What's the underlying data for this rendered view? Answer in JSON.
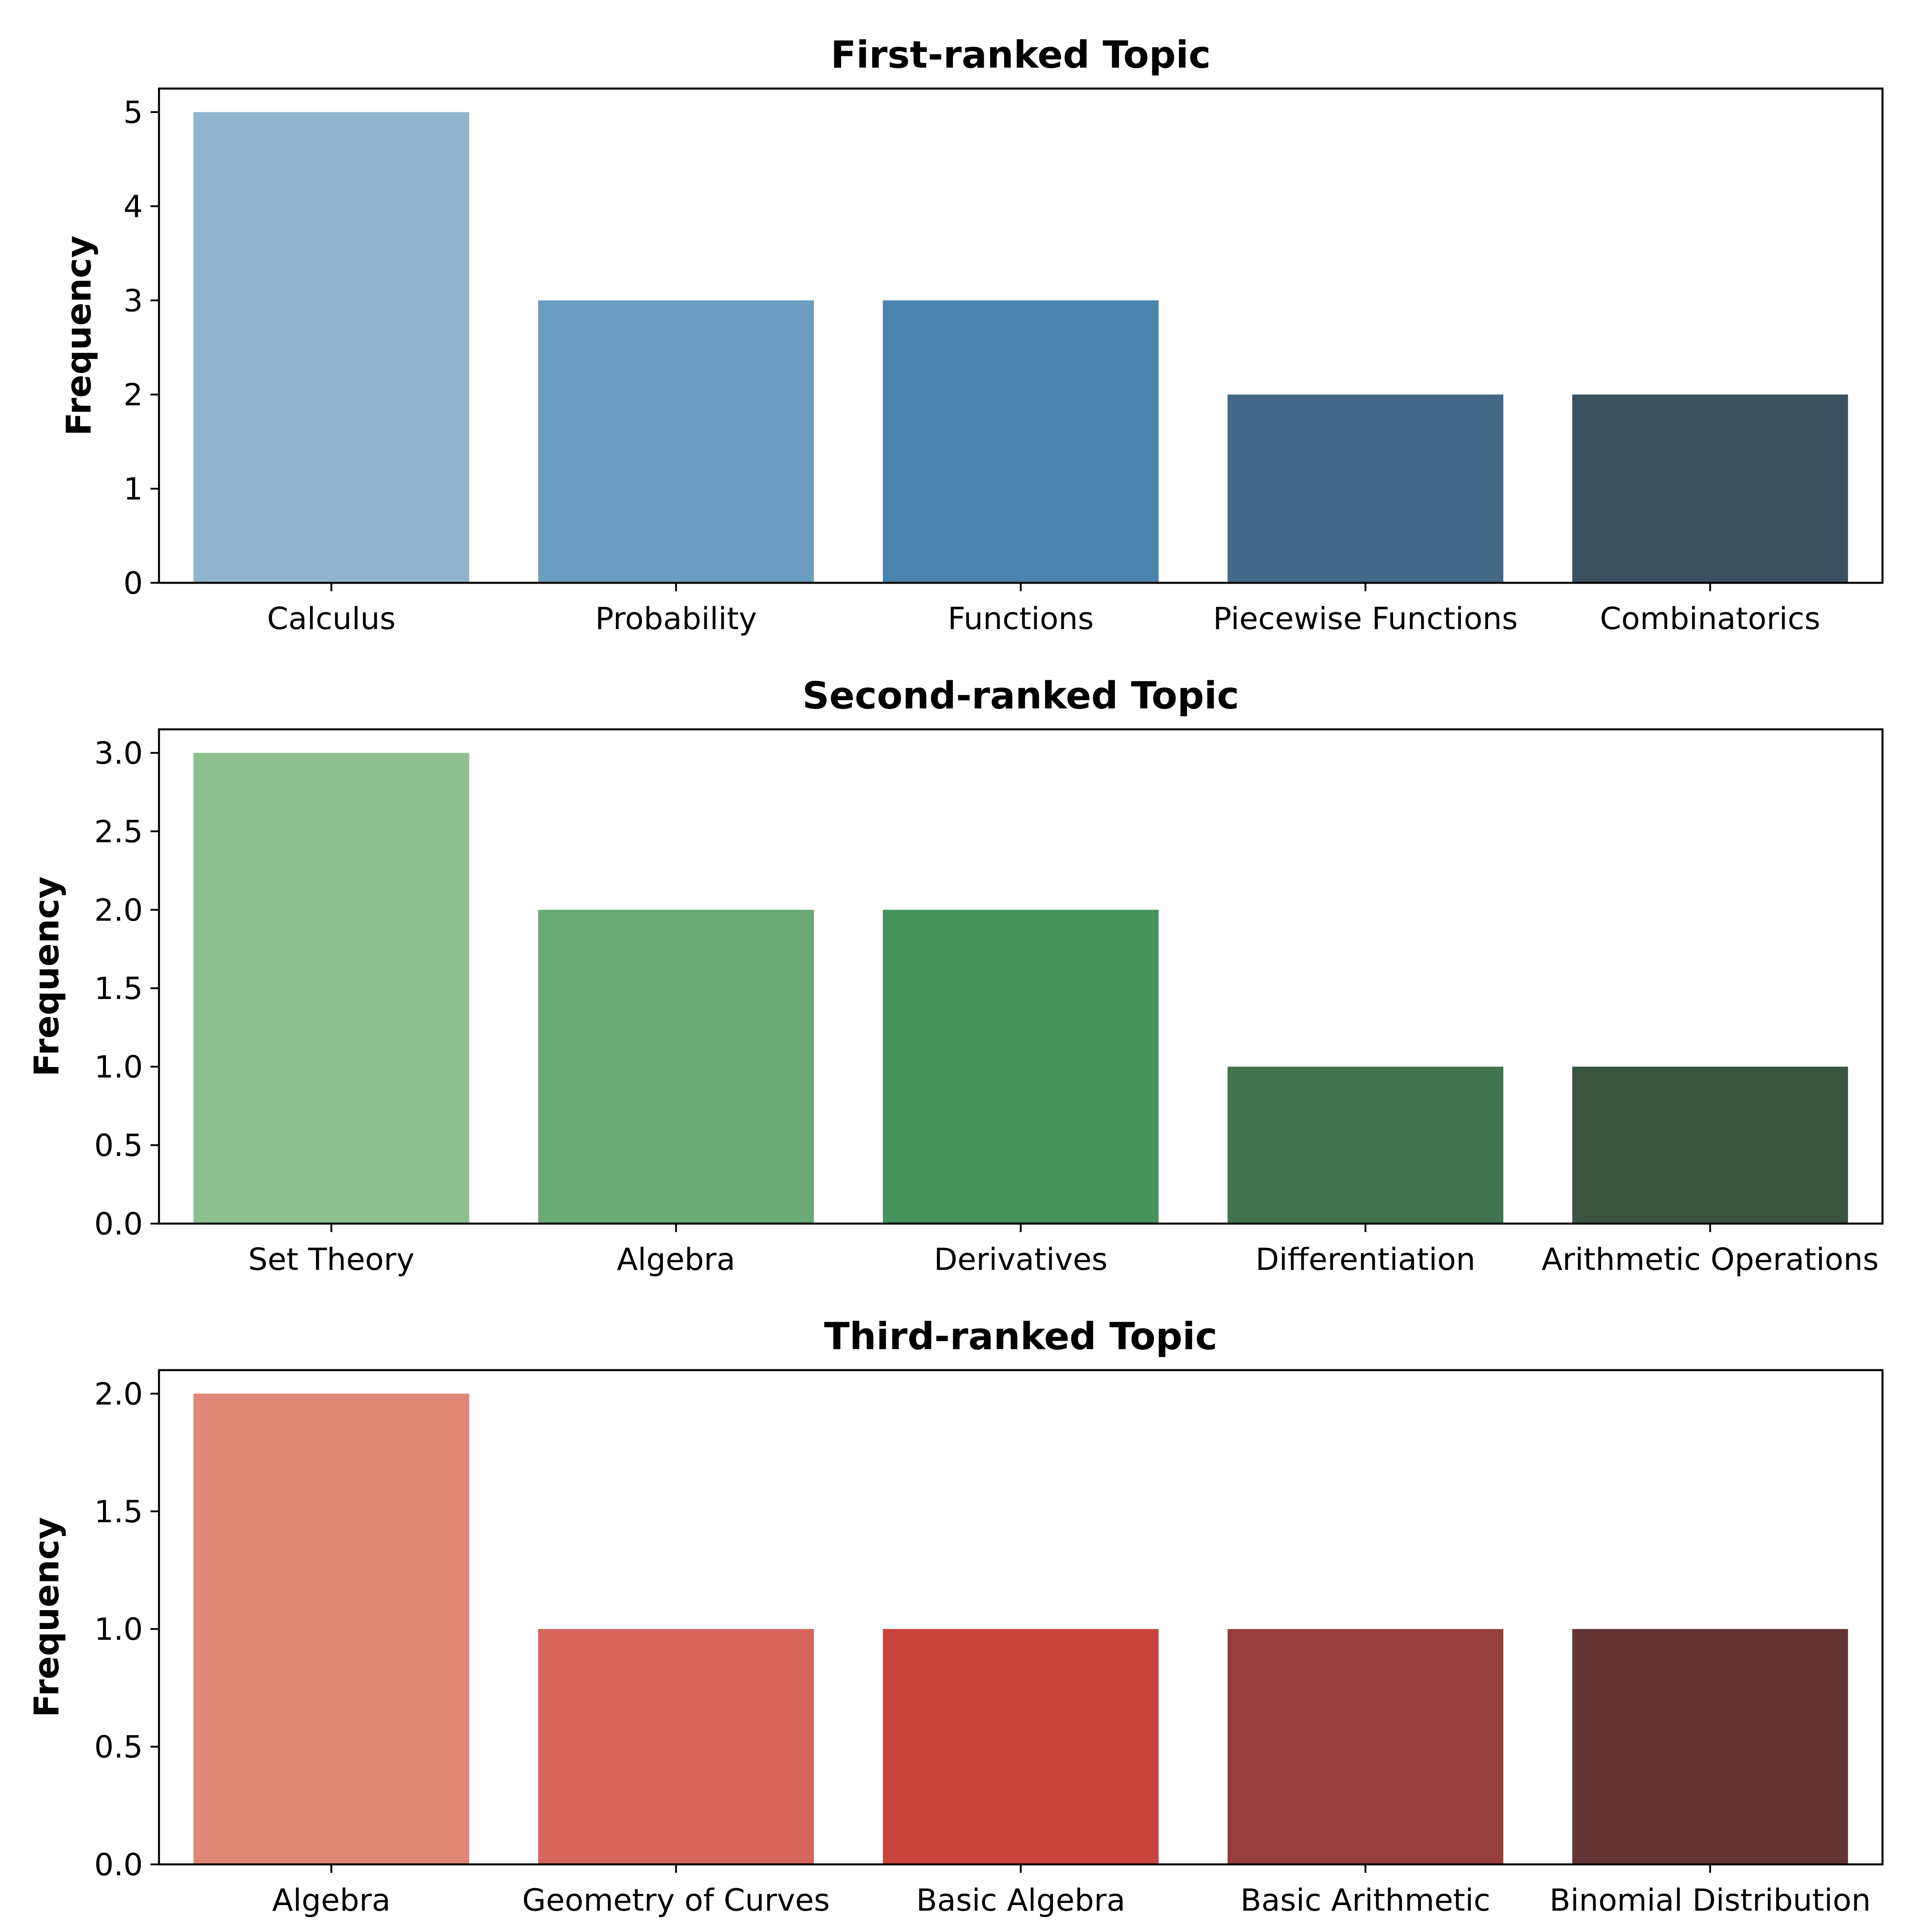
{
  "chart_data": [
    {
      "type": "bar",
      "title": "First-ranked Topic",
      "xlabel": "",
      "ylabel": "Frequency",
      "categories": [
        "Calculus",
        "Probability",
        "Functions",
        "Piecewise Functions",
        "Combinatorics"
      ],
      "values": [
        5,
        3,
        3,
        2,
        2
      ],
      "ylim": [
        0,
        5.25
      ],
      "yticks": [
        0,
        1,
        2,
        3,
        4,
        5
      ],
      "ytick_labels": [
        "0",
        "1",
        "2",
        "3",
        "4",
        "5"
      ],
      "colors": [
        "#91b5cf",
        "#6c9dbf",
        "#4a84ae",
        "#436987",
        "#3b4f5d"
      ],
      "grid": false
    },
    {
      "type": "bar",
      "title": "Second-ranked Topic",
      "xlabel": "",
      "ylabel": "Frequency",
      "categories": [
        "Set Theory",
        "Algebra",
        "Derivatives",
        "Differentiation",
        "Arithmetic Operations"
      ],
      "values": [
        3,
        2,
        2,
        1,
        1
      ],
      "ylim": [
        0,
        3.15
      ],
      "yticks": [
        0,
        0.5,
        1,
        1.5,
        2,
        2.5,
        3
      ],
      "ytick_labels": [
        "0.0",
        "0.5",
        "1.0",
        "1.5",
        "2.0",
        "2.5",
        "3.0"
      ],
      "colors": [
        "#8fc08f",
        "#6aaa74",
        "#45935a",
        "#40734e",
        "#3a5442"
      ],
      "grid": false
    },
    {
      "type": "bar",
      "title": "Third-ranked Topic",
      "xlabel": "",
      "ylabel": "Frequency",
      "categories": [
        "Algebra",
        "Geometry of Curves",
        "Basic Algebra",
        "Basic Arithmetic",
        "Binomial Distribution"
      ],
      "values": [
        2,
        1,
        1,
        1,
        1
      ],
      "ylim": [
        0,
        2.1
      ],
      "yticks": [
        0,
        0.5,
        1,
        1.5,
        2
      ],
      "ytick_labels": [
        "0.0",
        "0.5",
        "1.0",
        "1.5",
        "2.0"
      ],
      "colors": [
        "#e08676",
        "#d6665d",
        "#c9443f",
        "#963e3c",
        "#643536"
      ],
      "grid": false
    }
  ]
}
